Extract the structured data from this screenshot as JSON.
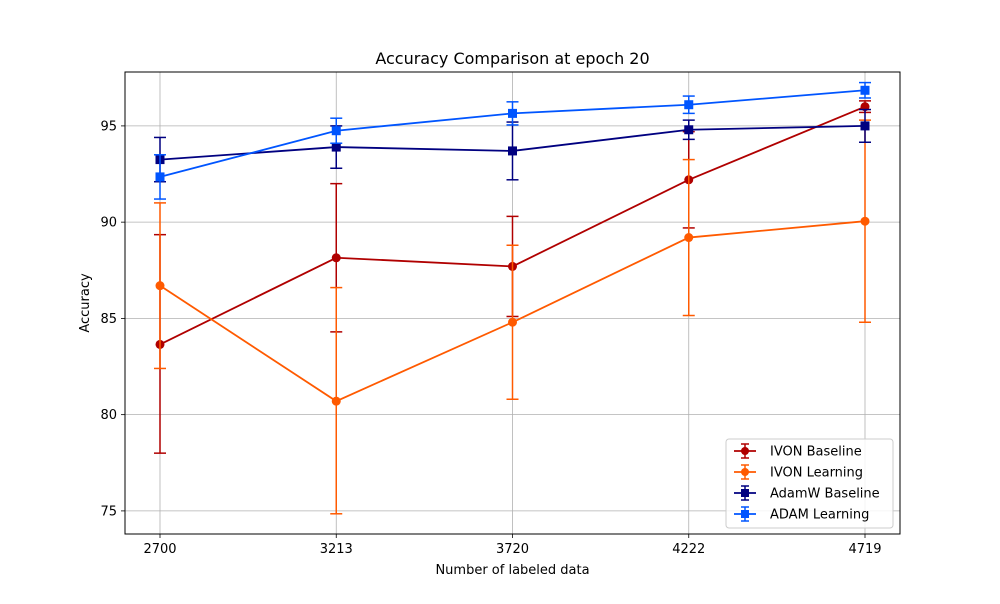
{
  "chart_data": {
    "type": "line",
    "title": "Accuracy Comparison at epoch 20",
    "xlabel": "Number of labeled data",
    "ylabel": "Accuracy",
    "categories": [
      "2700",
      "3213",
      "3720",
      "4222",
      "4719"
    ],
    "ylim": [
      73.8,
      97.8
    ],
    "yticks": [
      75,
      80,
      85,
      90,
      95
    ],
    "grid": true,
    "legend_position": "lower right",
    "series": [
      {
        "name": "IVON Baseline",
        "color": "#b00000",
        "marker": "circle",
        "values": [
          83.65,
          88.15,
          87.7,
          92.2,
          96.0
        ],
        "err_low": [
          78.0,
          84.3,
          85.1,
          89.7,
          95.7
        ],
        "err_high": [
          89.35,
          92.0,
          90.3,
          94.7,
          96.3
        ]
      },
      {
        "name": "IVON Learning",
        "color": "#ff5a00",
        "marker": "circle",
        "values": [
          86.7,
          80.7,
          84.8,
          89.2,
          90.05
        ],
        "err_low": [
          82.4,
          74.85,
          80.8,
          85.15,
          84.8
        ],
        "err_high": [
          91.0,
          86.6,
          88.8,
          93.25,
          95.3
        ]
      },
      {
        "name": "AdamW Baseline",
        "color": "#000080",
        "marker": "square",
        "values": [
          93.25,
          93.9,
          93.7,
          94.8,
          95.0
        ],
        "err_low": [
          92.1,
          92.8,
          92.2,
          94.3,
          94.15
        ],
        "err_high": [
          94.4,
          95.0,
          95.2,
          95.3,
          95.85
        ]
      },
      {
        "name": "ADAM Learning",
        "color": "#0055ff",
        "marker": "square",
        "values": [
          92.35,
          94.75,
          95.65,
          96.1,
          96.85
        ],
        "err_low": [
          91.2,
          94.1,
          95.05,
          95.65,
          96.45
        ],
        "err_high": [
          93.5,
          95.4,
          96.25,
          96.55,
          97.25
        ]
      }
    ]
  }
}
